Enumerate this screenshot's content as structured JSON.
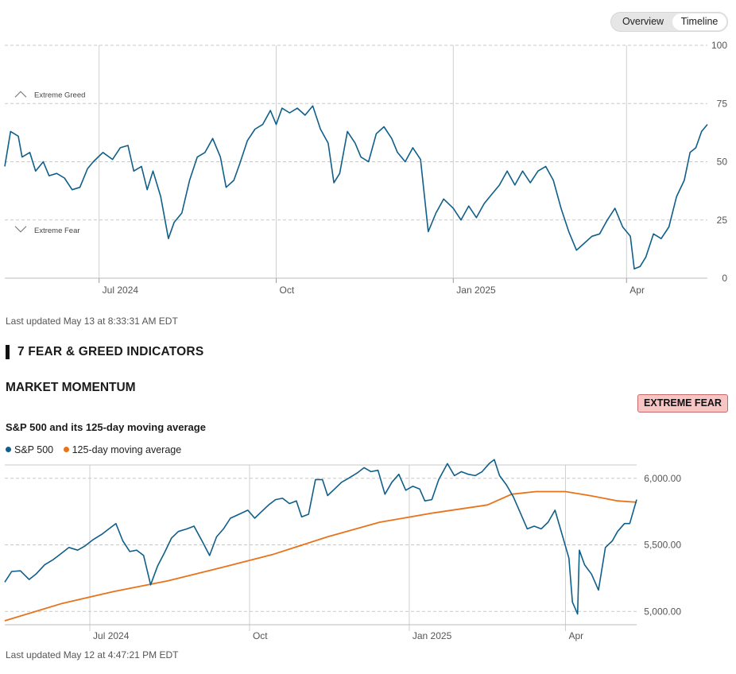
{
  "toggle": {
    "overview": "Overview",
    "timeline": "Timeline",
    "active": "Timeline"
  },
  "fear_greed": {
    "updated": "Last updated May 13 at 8:33:31 AM EDT",
    "zones": {
      "greed": "Extreme Greed",
      "fear": "Extreme Fear"
    },
    "line_color": "#0f5f8a"
  },
  "indicators_heading": "7 FEAR & GREED INDICATORS",
  "market_momentum": {
    "title": "MARKET MOMENTUM",
    "badge": "EXTREME FEAR",
    "badge_color": "#f8c5c5",
    "subtitle": "S&P 500 and its 125-day moving average",
    "legend": [
      {
        "label": "S&P 500",
        "color": "#0f5f8a"
      },
      {
        "label": "125-day moving average",
        "color": "#e8731a"
      }
    ],
    "updated": "Last updated May 12 at 4:47:21 PM EDT"
  },
  "chart_data": [
    {
      "type": "line",
      "x_ticks": [
        "Jul 2024",
        "Oct",
        "Jan 2025",
        "Apr"
      ],
      "x_tick_dates": [
        "2024-07-01",
        "2024-10-01",
        "2025-01-01",
        "2025-04-01"
      ],
      "x_range": [
        "2024-05-13",
        "2025-05-13"
      ],
      "y_ticks": [
        0,
        25,
        50,
        75,
        100
      ],
      "ylim": [
        0,
        100
      ],
      "grid": true,
      "series": [
        {
          "color": "#0f5f8a",
          "points": [
            [
              "2024-05-13",
              48
            ],
            [
              "2024-05-16",
              63
            ],
            [
              "2024-05-20",
              61
            ],
            [
              "2024-05-22",
              52
            ],
            [
              "2024-05-26",
              54
            ],
            [
              "2024-05-29",
              46
            ],
            [
              "2024-06-02",
              50
            ],
            [
              "2024-06-05",
              44
            ],
            [
              "2024-06-09",
              45
            ],
            [
              "2024-06-13",
              43
            ],
            [
              "2024-06-17",
              38
            ],
            [
              "2024-06-21",
              39
            ],
            [
              "2024-06-25",
              47
            ],
            [
              "2024-06-28",
              50
            ],
            [
              "2024-07-03",
              54
            ],
            [
              "2024-07-08",
              51
            ],
            [
              "2024-07-12",
              56
            ],
            [
              "2024-07-16",
              57
            ],
            [
              "2024-07-19",
              46
            ],
            [
              "2024-07-23",
              48
            ],
            [
              "2024-07-26",
              38
            ],
            [
              "2024-07-29",
              46
            ],
            [
              "2024-08-02",
              35
            ],
            [
              "2024-08-06",
              17
            ],
            [
              "2024-08-09",
              24
            ],
            [
              "2024-08-13",
              28
            ],
            [
              "2024-08-17",
              42
            ],
            [
              "2024-08-21",
              52
            ],
            [
              "2024-08-25",
              54
            ],
            [
              "2024-08-29",
              60
            ],
            [
              "2024-09-02",
              52
            ],
            [
              "2024-09-05",
              39
            ],
            [
              "2024-09-09",
              42
            ],
            [
              "2024-09-12",
              49
            ],
            [
              "2024-09-16",
              59
            ],
            [
              "2024-09-20",
              64
            ],
            [
              "2024-09-24",
              66
            ],
            [
              "2024-09-28",
              72
            ],
            [
              "2024-10-01",
              66
            ],
            [
              "2024-10-04",
              73
            ],
            [
              "2024-10-08",
              71
            ],
            [
              "2024-10-12",
              73
            ],
            [
              "2024-10-16",
              70
            ],
            [
              "2024-10-20",
              74
            ],
            [
              "2024-10-24",
              64
            ],
            [
              "2024-10-28",
              58
            ],
            [
              "2024-10-31",
              41
            ],
            [
              "2024-11-03",
              45
            ],
            [
              "2024-11-07",
              63
            ],
            [
              "2024-11-11",
              58
            ],
            [
              "2024-11-14",
              52
            ],
            [
              "2024-11-18",
              50
            ],
            [
              "2024-11-22",
              62
            ],
            [
              "2024-11-26",
              65
            ],
            [
              "2024-11-30",
              60
            ],
            [
              "2024-12-03",
              54
            ],
            [
              "2024-12-07",
              50
            ],
            [
              "2024-12-11",
              56
            ],
            [
              "2024-12-15",
              51
            ],
            [
              "2024-12-19",
              20
            ],
            [
              "2024-12-23",
              28
            ],
            [
              "2024-12-27",
              34
            ],
            [
              "2025-01-01",
              30
            ],
            [
              "2025-01-05",
              25
            ],
            [
              "2025-01-09",
              31
            ],
            [
              "2025-01-13",
              26
            ],
            [
              "2025-01-17",
              32
            ],
            [
              "2025-01-21",
              36
            ],
            [
              "2025-01-25",
              40
            ],
            [
              "2025-01-29",
              46
            ],
            [
              "2025-02-02",
              40
            ],
            [
              "2025-02-06",
              46
            ],
            [
              "2025-02-10",
              41
            ],
            [
              "2025-02-14",
              46
            ],
            [
              "2025-02-18",
              48
            ],
            [
              "2025-02-22",
              42
            ],
            [
              "2025-02-26",
              30
            ],
            [
              "2025-03-02",
              20
            ],
            [
              "2025-03-06",
              12
            ],
            [
              "2025-03-10",
              15
            ],
            [
              "2025-03-14",
              18
            ],
            [
              "2025-03-18",
              19
            ],
            [
              "2025-03-22",
              25
            ],
            [
              "2025-03-26",
              30
            ],
            [
              "2025-03-30",
              22
            ],
            [
              "2025-04-03",
              18
            ],
            [
              "2025-04-05",
              4
            ],
            [
              "2025-04-08",
              5
            ],
            [
              "2025-04-11",
              9
            ],
            [
              "2025-04-15",
              19
            ],
            [
              "2025-04-19",
              17
            ],
            [
              "2025-04-23",
              22
            ],
            [
              "2025-04-27",
              35
            ],
            [
              "2025-05-01",
              42
            ],
            [
              "2025-05-04",
              54
            ],
            [
              "2025-05-07",
              56
            ],
            [
              "2025-05-10",
              63
            ],
            [
              "2025-05-13",
              66
            ]
          ]
        }
      ]
    },
    {
      "type": "line",
      "title": "S&P 500 and its 125-day moving average",
      "x_ticks": [
        "Jul 2024",
        "Oct",
        "Jan 2025",
        "Apr"
      ],
      "x_tick_dates": [
        "2024-07-01",
        "2024-10-01",
        "2025-01-01",
        "2025-04-01"
      ],
      "x_range": [
        "2024-05-13",
        "2025-05-12"
      ],
      "y_ticks": [
        "5,000.00",
        "5,500.00",
        "6,000.00"
      ],
      "y_tick_values": [
        5000,
        5500,
        6000
      ],
      "ylim": [
        4900,
        6100
      ],
      "grid": true,
      "series": [
        {
          "name": "S&P 500",
          "color": "#0f5f8a",
          "points": [
            [
              "2024-05-13",
              5220
            ],
            [
              "2024-05-17",
              5300
            ],
            [
              "2024-05-22",
              5305
            ],
            [
              "2024-05-27",
              5240
            ],
            [
              "2024-05-31",
              5280
            ],
            [
              "2024-06-05",
              5350
            ],
            [
              "2024-06-10",
              5390
            ],
            [
              "2024-06-14",
              5430
            ],
            [
              "2024-06-19",
              5480
            ],
            [
              "2024-06-24",
              5460
            ],
            [
              "2024-06-28",
              5490
            ],
            [
              "2024-07-03",
              5540
            ],
            [
              "2024-07-08",
              5580
            ],
            [
              "2024-07-12",
              5620
            ],
            [
              "2024-07-16",
              5660
            ],
            [
              "2024-07-20",
              5530
            ],
            [
              "2024-07-24",
              5450
            ],
            [
              "2024-07-28",
              5460
            ],
            [
              "2024-08-01",
              5420
            ],
            [
              "2024-08-05",
              5200
            ],
            [
              "2024-08-09",
              5340
            ],
            [
              "2024-08-13",
              5440
            ],
            [
              "2024-08-17",
              5550
            ],
            [
              "2024-08-21",
              5600
            ],
            [
              "2024-08-26",
              5620
            ],
            [
              "2024-08-30",
              5640
            ],
            [
              "2024-09-04",
              5520
            ],
            [
              "2024-09-08",
              5420
            ],
            [
              "2024-09-12",
              5560
            ],
            [
              "2024-09-16",
              5620
            ],
            [
              "2024-09-20",
              5700
            ],
            [
              "2024-09-25",
              5730
            ],
            [
              "2024-09-30",
              5760
            ],
            [
              "2024-10-04",
              5700
            ],
            [
              "2024-10-08",
              5750
            ],
            [
              "2024-10-12",
              5800
            ],
            [
              "2024-10-16",
              5840
            ],
            [
              "2024-10-20",
              5850
            ],
            [
              "2024-10-24",
              5810
            ],
            [
              "2024-10-28",
              5830
            ],
            [
              "2024-10-31",
              5710
            ],
            [
              "2024-11-04",
              5730
            ],
            [
              "2024-11-08",
              5990
            ],
            [
              "2024-11-12",
              5990
            ],
            [
              "2024-11-15",
              5870
            ],
            [
              "2024-11-19",
              5920
            ],
            [
              "2024-11-23",
              5970
            ],
            [
              "2024-11-27",
              6000
            ],
            [
              "2024-12-02",
              6040
            ],
            [
              "2024-12-06",
              6080
            ],
            [
              "2024-12-10",
              6050
            ],
            [
              "2024-12-14",
              6060
            ],
            [
              "2024-12-18",
              5880
            ],
            [
              "2024-12-22",
              5970
            ],
            [
              "2024-12-26",
              6030
            ],
            [
              "2024-12-30",
              5910
            ],
            [
              "2025-01-03",
              5940
            ],
            [
              "2025-01-07",
              5920
            ],
            [
              "2025-01-10",
              5830
            ],
            [
              "2025-01-14",
              5840
            ],
            [
              "2025-01-18",
              5990
            ],
            [
              "2025-01-23",
              6110
            ],
            [
              "2025-01-27",
              6020
            ],
            [
              "2025-01-31",
              6050
            ],
            [
              "2025-02-04",
              6030
            ],
            [
              "2025-02-08",
              6020
            ],
            [
              "2025-02-12",
              6050
            ],
            [
              "2025-02-16",
              6110
            ],
            [
              "2025-02-19",
              6140
            ],
            [
              "2025-02-22",
              6020
            ],
            [
              "2025-02-26",
              5950
            ],
            [
              "2025-03-02",
              5860
            ],
            [
              "2025-03-06",
              5740
            ],
            [
              "2025-03-10",
              5620
            ],
            [
              "2025-03-14",
              5640
            ],
            [
              "2025-03-18",
              5620
            ],
            [
              "2025-03-22",
              5670
            ],
            [
              "2025-03-26",
              5760
            ],
            [
              "2025-03-30",
              5580
            ],
            [
              "2025-04-03",
              5400
            ],
            [
              "2025-04-05",
              5070
            ],
            [
              "2025-04-08",
              4980
            ],
            [
              "2025-04-09",
              5460
            ],
            [
              "2025-04-12",
              5350
            ],
            [
              "2025-04-16",
              5280
            ],
            [
              "2025-04-20",
              5160
            ],
            [
              "2025-04-24",
              5480
            ],
            [
              "2025-04-28",
              5530
            ],
            [
              "2025-05-01",
              5600
            ],
            [
              "2025-05-05",
              5660
            ],
            [
              "2025-05-08",
              5660
            ],
            [
              "2025-05-12",
              5840
            ]
          ]
        },
        {
          "name": "125-day moving average",
          "color": "#e8731a",
          "points": [
            [
              "2024-05-13",
              4930
            ],
            [
              "2024-06-15",
              5060
            ],
            [
              "2024-07-15",
              5150
            ],
            [
              "2024-08-15",
              5230
            ],
            [
              "2024-09-15",
              5330
            ],
            [
              "2024-10-15",
              5430
            ],
            [
              "2024-11-15",
              5560
            ],
            [
              "2024-12-15",
              5670
            ],
            [
              "2025-01-15",
              5740
            ],
            [
              "2025-02-15",
              5800
            ],
            [
              "2025-03-01",
              5880
            ],
            [
              "2025-03-15",
              5900
            ],
            [
              "2025-04-01",
              5900
            ],
            [
              "2025-04-15",
              5870
            ],
            [
              "2025-05-01",
              5830
            ],
            [
              "2025-05-12",
              5820
            ]
          ]
        }
      ]
    }
  ]
}
